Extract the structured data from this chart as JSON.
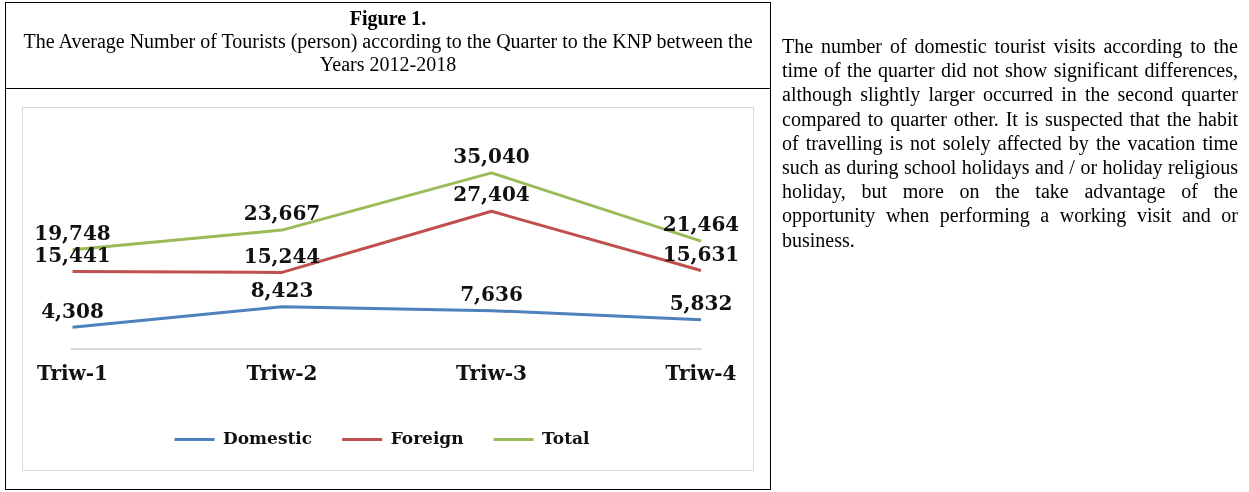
{
  "chart_data": {
    "type": "line",
    "title": "Figure 1.",
    "subtitle": "The Average Number of Tourists (person) according to the Quarter to the KNP between the Years 2012-2018",
    "categories": [
      "Triw-1",
      "Triw-2",
      "Triw-3",
      "Triw-4"
    ],
    "series": [
      {
        "name": "Domestic",
        "color": "#4f81bd",
        "values": [
          4308,
          8423,
          7636,
          5832
        ],
        "value_labels": [
          "4,308",
          "8,423",
          "7,636",
          "5,832"
        ]
      },
      {
        "name": "Foreign",
        "color": "#c0504d",
        "values": [
          15441,
          15244,
          27404,
          15631
        ],
        "value_labels": [
          "15,441",
          "15,244",
          "27,404",
          "15,631"
        ]
      },
      {
        "name": "Total",
        "color": "#9bbb59",
        "values": [
          19748,
          23667,
          35040,
          21464
        ],
        "value_labels": [
          "19,748",
          "23,667",
          "35,040",
          "21,464"
        ]
      }
    ],
    "legend": "bottom",
    "grid": false,
    "marker": "none",
    "line_style": "solid",
    "tick_labels": "x",
    "annotations": [
      "The number of domestic tourist visits according to the time of the quarter did not show significant differences, although slightly larger occurred in the second quarter compared to quarter other. It is suspected that the habit of travelling is not solely affected by the vacation time such as during school holidays and / or holiday religious holiday, but more on the take advantage of the opportunity when performing a working visit and or business."
    ]
  }
}
